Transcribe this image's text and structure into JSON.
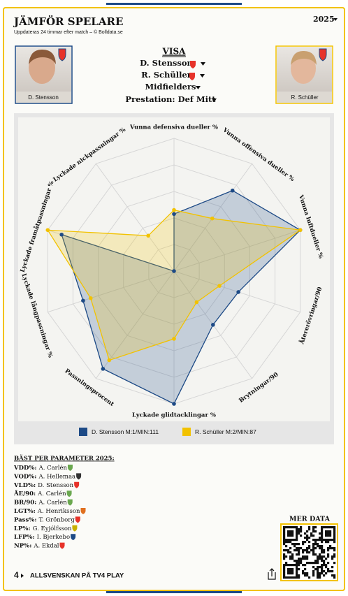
{
  "header": {
    "title": "JÄMFÖR SPELARE",
    "subtitle": "Uppdateras 24 timmar efter match – © Bolldata.se",
    "season": "2025"
  },
  "players": [
    {
      "name": "D. Stensson"
    },
    {
      "name": "R. Schüller"
    }
  ],
  "filters": {
    "heading": "VISA",
    "player1": "D. Stensson",
    "player2": "R. Schüller",
    "position": "Midfielders",
    "profile": "Prestation: Def Mitt"
  },
  "chart_data": {
    "type": "radar",
    "categories": [
      "Vunna defensiva dueller %",
      "Vunna offensiva dueller %",
      "Vunna luftdueller %",
      "Återerövringar/90",
      "Brytningar/90",
      "Lyckade glidtacklingar %",
      "Passningsprocent",
      "Lyckade långpassningar %",
      "Lyckade framåtpassningar %",
      "Lyckade nickpassningar %"
    ],
    "series": [
      {
        "name": "D. Stensson M:1/MIN:111",
        "color": "#1d4a86",
        "values": [
          43,
          75,
          100,
          51,
          50,
          100,
          91,
          72,
          89,
          0
        ]
      },
      {
        "name": "R. Schüller M:2/MIN:87",
        "color": "#f2c200",
        "values": [
          46,
          49,
          100,
          36,
          29,
          51,
          83,
          66,
          100,
          33
        ]
      }
    ],
    "ylim": [
      0,
      100
    ],
    "yticks": [
      0,
      20,
      40,
      60,
      80,
      100
    ],
    "grid": true
  },
  "best": {
    "title": "BÄST PER PARAMETER 2025:",
    "rows": [
      {
        "param": "VDD%:",
        "player": "A. Carlén"
      },
      {
        "param": "VOD%:",
        "player": "A. Hellemaa"
      },
      {
        "param": "VLD%:",
        "player": "D. Stensson"
      },
      {
        "param": "ÅE/90:",
        "player": "A. Carlén"
      },
      {
        "param": "BR/90:",
        "player": "A. Carlén"
      },
      {
        "param": "LGT%:",
        "player": "A. Henriksson"
      },
      {
        "param": "Pass%:",
        "player": "T. Grönborg"
      },
      {
        "param": "LP%:",
        "player": "G. Eyjólfsson"
      },
      {
        "param": "LFP%:",
        "player": "I. Bjerkebo"
      },
      {
        "param": "NP%:",
        "player": "A. Ekdal"
      }
    ]
  },
  "qr": {
    "label": "MER DATA"
  },
  "footer": {
    "logo": "4",
    "text": "ALLSVENSKAN PÅ TV4 PLAY"
  }
}
